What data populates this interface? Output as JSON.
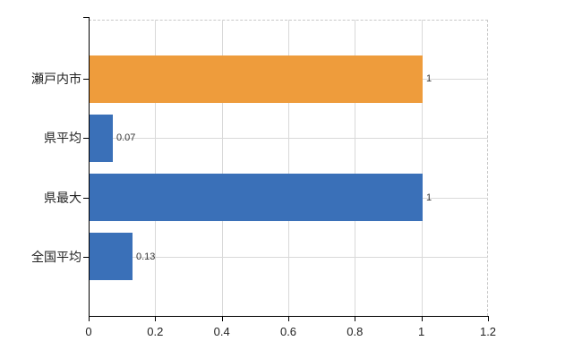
{
  "chart_data": {
    "type": "bar",
    "orientation": "horizontal",
    "title": "",
    "categories": [
      "瀬戸内市",
      "県平均",
      "県最大",
      "全国平均"
    ],
    "values": [
      1,
      0.07,
      1,
      0.13
    ],
    "value_labels": [
      "1",
      "0.07",
      "1",
      "0.13"
    ],
    "bar_colors": [
      "#EE9C3C",
      "#3A70B8",
      "#3A70B8",
      "#3A70B8"
    ],
    "xlim": [
      0,
      1.2
    ],
    "x_ticks": [
      0,
      0.2,
      0.4,
      0.6,
      0.8,
      1,
      1.2
    ],
    "x_tick_labels": [
      "0",
      "0.2",
      "0.4",
      "0.6",
      "0.8",
      "1",
      "1.2"
    ],
    "grid": true,
    "legend": false,
    "colors": {
      "gridline": "#D9D9D9",
      "border_dashed": "#C9C9C9",
      "axis": "#000000",
      "tick_text": "#222222",
      "value_text": "#333333",
      "background": "#FFFFFF"
    }
  }
}
